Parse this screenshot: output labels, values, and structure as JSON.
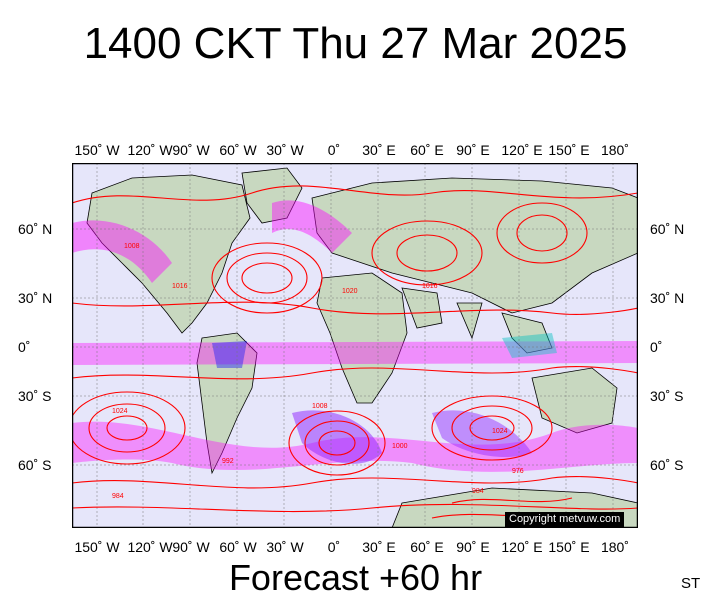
{
  "title": "1400 CKT Thu 27 Mar 2025",
  "footer": "Forecast +60 hr",
  "corner_label": "ST",
  "copyright": "Copyright metvuw.com",
  "lon_ticks": [
    "150˚ W",
    "120˚ W",
    "90˚ W",
    "60˚ W",
    "30˚ W",
    "0˚",
    "30˚ E",
    "60˚ E",
    "90˚ E",
    "120˚ E",
    "150˚ E",
    "180˚"
  ],
  "lat_ticks": [
    "60˚ N",
    "30˚ N",
    "0˚",
    "30˚ S",
    "60˚ S"
  ],
  "isobar_labels": [
    "1008",
    "1016",
    "1024",
    "1000",
    "992",
    "984",
    "976",
    "1020"
  ],
  "colors": {
    "ocean": "#e6e6fa",
    "land": "#c8d8c0",
    "isobar": "#ff0000",
    "precip_magenta": "#ff00ff",
    "precip_purple": "#8000ff",
    "precip_blue": "#0000ff",
    "precip_cyan": "#00c0c0"
  }
}
